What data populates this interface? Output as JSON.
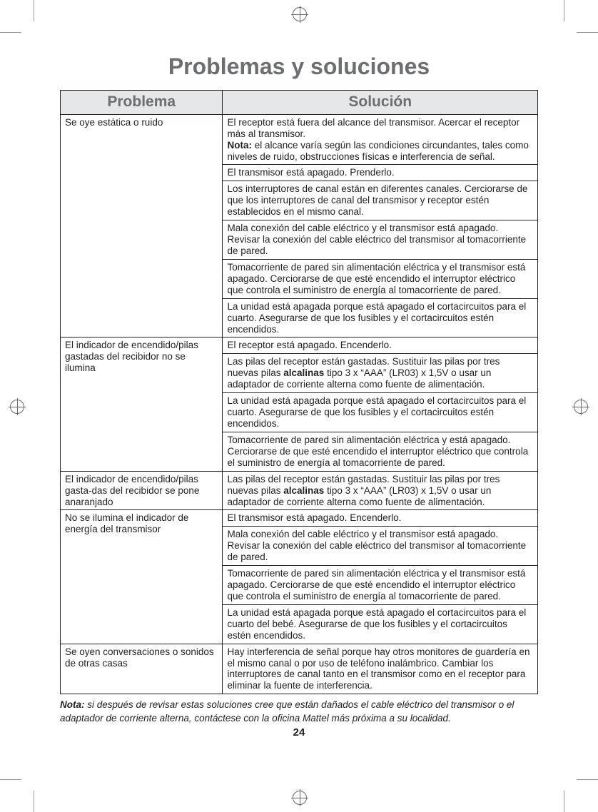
{
  "title": "Problemas y soluciones",
  "headers": {
    "problema": "Problema",
    "solucion": "Solución"
  },
  "rows": [
    {
      "problema": "Se oye estática o ruido",
      "soluciones": [
        "El receptor está fuera del alcance del transmisor. Acercar el receptor más al transmisor.\n<strong>Nota:</strong> el alcance varía según las condiciones circundantes, tales como niveles de ruido, obstrucciones físicas e interferencia de señal.",
        "El transmisor está apagado. Prenderlo.",
        "Los interruptores de canal están en diferentes canales. Cerciorarse de que los interruptores de canal del transmisor y receptor estén establecidos en el mismo canal.",
        "Mala conexión del cable eléctrico y el transmisor está apagado. Revisar la conexión del cable eléctrico del transmisor al tomacorriente de pared.",
        "Tomacorriente de pared sin alimentación eléctrica y el transmisor está apagado. Cerciorarse de que esté encendido el interruptor eléctrico que controla el suministro de energía al tomacorriente de pared.",
        "La unidad está apagada porque está apagado el cortacircuitos para el cuarto. Asegurarse de que los fusibles y el cortacircuitos estén encendidos."
      ]
    },
    {
      "problema": "El indicador de encendido/pilas gastadas del recibidor no se ilumina",
      "soluciones": [
        "El receptor está apagado. Encenderlo.",
        "Las pilas del receptor están gastadas. Sustituir las pilas por tres nuevas pilas <strong>alcalinas</strong> tipo 3 x “AAA” (LR03) x 1,5V o usar un adaptador de corriente alterna como fuente de alimentación.",
        "La unidad está apagada porque está apagado el cortacircuitos para el cuarto. Asegurarse de que los fusibles y el cortacircuitos estén encendidos.",
        "Tomacorriente de pared sin alimentación eléctrica y está apagado. Cerciorarse de que esté encendido el interruptor eléctrico que controla el suministro de energía al tomacorriente de pared."
      ]
    },
    {
      "problema": "El indicador de encendido/pilas gasta-das del recibidor se pone anaranjado",
      "soluciones": [
        "Las pilas del receptor están gastadas. Sustituir las pilas por tres nuevas pilas <strong>alcalinas</strong> tipo 3 x “AAA” (LR03) x 1,5V o usar un adaptador de corriente alterna como fuente de alimentación."
      ]
    },
    {
      "problema": "No se ilumina el indicador de energía del transmisor",
      "soluciones": [
        "El transmisor está apagado. Encenderlo.",
        "Mala conexión del cable eléctrico y el transmisor está apagado. Revisar la conexión del cable eléctrico del transmisor al tomacorriente de pared.",
        "Tomacorriente de pared sin alimentación eléctrica y el transmisor está apagado. Cerciorarse de que esté encendido el interruptor eléctrico que controla el suministro de energía al tomacorriente de pared.",
        "La unidad está apagada porque está apagado el cortacircuitos para el cuarto del bebé. Asegurarse de que los fusibles y el cortacircuitos estén encendidos."
      ]
    },
    {
      "problema": "Se oyen conversaciones o sonidos de otras casas",
      "soluciones": [
        "Hay interferencia de señal porque hay otros monitores de guardería en el mismo canal o por uso de teléfono inalámbrico. Cambiar los interruptores de canal tanto en el transmisor como en el receptor para eliminar la fuente de interferencia."
      ]
    }
  ],
  "footnote": {
    "label": "Nota:",
    "text": " si después de revisar estas soluciones cree que están dañados el cable eléctrico del transmisor o el adaptador de corriente alterna, contáctese con la oficina Mattel más próxima a su localidad."
  },
  "page_number": "24"
}
